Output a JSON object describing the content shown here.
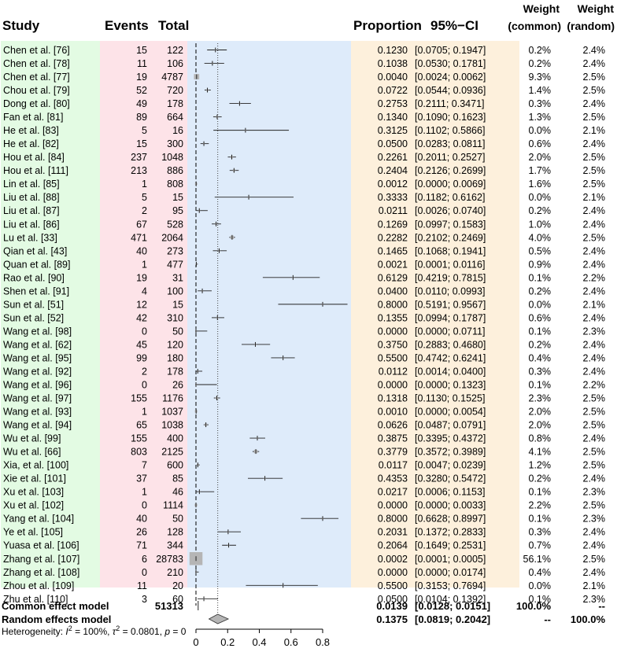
{
  "headers": {
    "study": "Study",
    "events": "Events",
    "total": "Total",
    "proportion": "Proportion",
    "ci": "95%−CI",
    "weight_common_1": "Weight",
    "weight_common_2": "(common)",
    "weight_random_1": "Weight",
    "weight_random_2": "(random)"
  },
  "colors": {
    "study_bg": "#e3fbe3",
    "counts_bg": "#fde3e8",
    "plot_bg": "#deebfa",
    "prop_bg": "#fdf0dc",
    "square": "#b5b5b5",
    "diamond": "#b5b5b5"
  },
  "chart_data": {
    "type": "forest",
    "xlim": [
      0,
      0.8
    ],
    "x_ticks": [
      0,
      0.2,
      0.4,
      0.6,
      0.8
    ],
    "x_tick_labels": [
      "0",
      "0.2",
      "0.4",
      "0.6",
      "0.8"
    ],
    "null_line": 0,
    "common_effect": 0.0139,
    "random_effect": 0.1375,
    "studies": [
      {
        "study": "Chen et al. [76]",
        "events": "15",
        "total": "122",
        "prop": 0.123,
        "lo": 0.0705,
        "hi": 0.1947,
        "prop_txt": "0.1230",
        "ci_txt": "[0.0705; 0.1947]",
        "w_common": "0.2%",
        "w_random": "2.4%",
        "w": 0.2
      },
      {
        "study": "Chen et al. [78]",
        "events": "11",
        "total": "106",
        "prop": 0.1038,
        "lo": 0.053,
        "hi": 0.1781,
        "prop_txt": "0.1038",
        "ci_txt": "[0.0530; 0.1781]",
        "w_common": "0.2%",
        "w_random": "2.4%",
        "w": 0.2
      },
      {
        "study": "Chen et al. [77]",
        "events": "19",
        "total": "4787",
        "prop": 0.004,
        "lo": 0.0024,
        "hi": 0.0062,
        "prop_txt": "0.0040",
        "ci_txt": "[0.0024; 0.0062]",
        "w_common": "9.3%",
        "w_random": "2.5%",
        "w": 9.3
      },
      {
        "study": "Chou et al. [79]",
        "events": "52",
        "total": "720",
        "prop": 0.0722,
        "lo": 0.0544,
        "hi": 0.0936,
        "prop_txt": "0.0722",
        "ci_txt": "[0.0544; 0.0936]",
        "w_common": "1.4%",
        "w_random": "2.5%",
        "w": 1.4
      },
      {
        "study": "Dong et al. [80]",
        "events": "49",
        "total": "178",
        "prop": 0.2753,
        "lo": 0.2111,
        "hi": 0.3471,
        "prop_txt": "0.2753",
        "ci_txt": "[0.2111; 0.3471]",
        "w_common": "0.3%",
        "w_random": "2.4%",
        "w": 0.3
      },
      {
        "study": "Fan et al. [81]",
        "events": "89",
        "total": "664",
        "prop": 0.134,
        "lo": 0.109,
        "hi": 0.1623,
        "prop_txt": "0.1340",
        "ci_txt": "[0.1090; 0.1623]",
        "w_common": "1.3%",
        "w_random": "2.5%",
        "w": 1.3
      },
      {
        "study": "He et al. [83]",
        "events": "5",
        "total": "16",
        "prop": 0.3125,
        "lo": 0.1102,
        "hi": 0.5866,
        "prop_txt": "0.3125",
        "ci_txt": "[0.1102; 0.5866]",
        "w_common": "0.0%",
        "w_random": "2.1%",
        "w": 0.0
      },
      {
        "study": "He et al. [82]",
        "events": "15",
        "total": "300",
        "prop": 0.05,
        "lo": 0.0283,
        "hi": 0.0811,
        "prop_txt": "0.0500",
        "ci_txt": "[0.0283; 0.0811]",
        "w_common": "0.6%",
        "w_random": "2.4%",
        "w": 0.6
      },
      {
        "study": "Hou et al. [84]",
        "events": "237",
        "total": "1048",
        "prop": 0.2261,
        "lo": 0.2011,
        "hi": 0.2527,
        "prop_txt": "0.2261",
        "ci_txt": "[0.2011; 0.2527]",
        "w_common": "2.0%",
        "w_random": "2.5%",
        "w": 2.0
      },
      {
        "study": "Hou et al. [111]",
        "events": "213",
        "total": "886",
        "prop": 0.2404,
        "lo": 0.2126,
        "hi": 0.2699,
        "prop_txt": "0.2404",
        "ci_txt": "[0.2126; 0.2699]",
        "w_common": "1.7%",
        "w_random": "2.5%",
        "w": 1.7
      },
      {
        "study": "Lin et al. [85]",
        "events": "1",
        "total": "808",
        "prop": 0.0012,
        "lo": 0.0,
        "hi": 0.0069,
        "prop_txt": "0.0012",
        "ci_txt": "[0.0000; 0.0069]",
        "w_common": "1.6%",
        "w_random": "2.5%",
        "w": 1.6
      },
      {
        "study": "Liu et al. [88]",
        "events": "5",
        "total": "15",
        "prop": 0.3333,
        "lo": 0.1182,
        "hi": 0.6162,
        "prop_txt": "0.3333",
        "ci_txt": "[0.1182; 0.6162]",
        "w_common": "0.0%",
        "w_random": "2.1%",
        "w": 0.0
      },
      {
        "study": "Liu et al. [87]",
        "events": "2",
        "total": "95",
        "prop": 0.0211,
        "lo": 0.0026,
        "hi": 0.074,
        "prop_txt": "0.0211",
        "ci_txt": "[0.0026; 0.0740]",
        "w_common": "0.2%",
        "w_random": "2.4%",
        "w": 0.2
      },
      {
        "study": "Liu et al. [86]",
        "events": "67",
        "total": "528",
        "prop": 0.1269,
        "lo": 0.0997,
        "hi": 0.1583,
        "prop_txt": "0.1269",
        "ci_txt": "[0.0997; 0.1583]",
        "w_common": "1.0%",
        "w_random": "2.4%",
        "w": 1.0
      },
      {
        "study": "Lu et al. [33]",
        "events": "471",
        "total": "2064",
        "prop": 0.2282,
        "lo": 0.2102,
        "hi": 0.2469,
        "prop_txt": "0.2282",
        "ci_txt": "[0.2102; 0.2469]",
        "w_common": "4.0%",
        "w_random": "2.5%",
        "w": 4.0
      },
      {
        "study": "Qian et al. [43]",
        "events": "40",
        "total": "273",
        "prop": 0.1465,
        "lo": 0.1068,
        "hi": 0.1941,
        "prop_txt": "0.1465",
        "ci_txt": "[0.1068; 0.1941]",
        "w_common": "0.5%",
        "w_random": "2.4%",
        "w": 0.5
      },
      {
        "study": "Quan et al. [89]",
        "events": "1",
        "total": "477",
        "prop": 0.0021,
        "lo": 0.0001,
        "hi": 0.0116,
        "prop_txt": "0.0021",
        "ci_txt": "[0.0001; 0.0116]",
        "w_common": "0.9%",
        "w_random": "2.4%",
        "w": 0.9
      },
      {
        "study": "Rao et al. [90]",
        "events": "19",
        "total": "31",
        "prop": 0.6129,
        "lo": 0.4219,
        "hi": 0.7815,
        "prop_txt": "0.6129",
        "ci_txt": "[0.4219; 0.7815]",
        "w_common": "0.1%",
        "w_random": "2.2%",
        "w": 0.1
      },
      {
        "study": "Shen et al. [91]",
        "events": "4",
        "total": "100",
        "prop": 0.04,
        "lo": 0.011,
        "hi": 0.0993,
        "prop_txt": "0.0400",
        "ci_txt": "[0.0110; 0.0993]",
        "w_common": "0.2%",
        "w_random": "2.4%",
        "w": 0.2
      },
      {
        "study": "Sun et al. [51]",
        "events": "12",
        "total": "15",
        "prop": 0.8,
        "lo": 0.5191,
        "hi": 0.9567,
        "prop_txt": "0.8000",
        "ci_txt": "[0.5191; 0.9567]",
        "w_common": "0.0%",
        "w_random": "2.1%",
        "w": 0.0
      },
      {
        "study": "Sun et al. [52]",
        "events": "42",
        "total": "310",
        "prop": 0.1355,
        "lo": 0.0994,
        "hi": 0.1787,
        "prop_txt": "0.1355",
        "ci_txt": "[0.0994; 0.1787]",
        "w_common": "0.6%",
        "w_random": "2.4%",
        "w": 0.6
      },
      {
        "study": "Wang et al. [98]",
        "events": "0",
        "total": "50",
        "prop": 0.0,
        "lo": 0.0,
        "hi": 0.0711,
        "prop_txt": "0.0000",
        "ci_txt": "[0.0000; 0.0711]",
        "w_common": "0.1%",
        "w_random": "2.3%",
        "w": 0.1
      },
      {
        "study": "Wang et al. [62]",
        "events": "45",
        "total": "120",
        "prop": 0.375,
        "lo": 0.2883,
        "hi": 0.468,
        "prop_txt": "0.3750",
        "ci_txt": "[0.2883; 0.4680]",
        "w_common": "0.2%",
        "w_random": "2.4%",
        "w": 0.2
      },
      {
        "study": "Wang et al. [95]",
        "events": "99",
        "total": "180",
        "prop": 0.55,
        "lo": 0.4742,
        "hi": 0.6241,
        "prop_txt": "0.5500",
        "ci_txt": "[0.4742; 0.6241]",
        "w_common": "0.4%",
        "w_random": "2.4%",
        "w": 0.4
      },
      {
        "study": "Wang et al. [92]",
        "events": "2",
        "total": "178",
        "prop": 0.0112,
        "lo": 0.0014,
        "hi": 0.04,
        "prop_txt": "0.0112",
        "ci_txt": "[0.0014; 0.0400]",
        "w_common": "0.3%",
        "w_random": "2.4%",
        "w": 0.3
      },
      {
        "study": "Wang et al. [96]",
        "events": "0",
        "total": "26",
        "prop": 0.0,
        "lo": 0.0,
        "hi": 0.1323,
        "prop_txt": "0.0000",
        "ci_txt": "[0.0000; 0.1323]",
        "w_common": "0.1%",
        "w_random": "2.2%",
        "w": 0.1
      },
      {
        "study": "Wang et al. [97]",
        "events": "155",
        "total": "1176",
        "prop": 0.1318,
        "lo": 0.113,
        "hi": 0.1525,
        "prop_txt": "0.1318",
        "ci_txt": "[0.1130; 0.1525]",
        "w_common": "2.3%",
        "w_random": "2.5%",
        "w": 2.3
      },
      {
        "study": "Wang et al. [93]",
        "events": "1",
        "total": "1037",
        "prop": 0.001,
        "lo": 0.0,
        "hi": 0.0054,
        "prop_txt": "0.0010",
        "ci_txt": "[0.0000; 0.0054]",
        "w_common": "2.0%",
        "w_random": "2.5%",
        "w": 2.0
      },
      {
        "study": "Wang et al. [94]",
        "events": "65",
        "total": "1038",
        "prop": 0.0626,
        "lo": 0.0487,
        "hi": 0.0791,
        "prop_txt": "0.0626",
        "ci_txt": "[0.0487; 0.0791]",
        "w_common": "2.0%",
        "w_random": "2.5%",
        "w": 2.0
      },
      {
        "study": "Wu et al. [99]",
        "events": "155",
        "total": "400",
        "prop": 0.3875,
        "lo": 0.3395,
        "hi": 0.4372,
        "prop_txt": "0.3875",
        "ci_txt": "[0.3395; 0.4372]",
        "w_common": "0.8%",
        "w_random": "2.4%",
        "w": 0.8
      },
      {
        "study": "Wu et al. [66]",
        "events": "803",
        "total": "2125",
        "prop": 0.3779,
        "lo": 0.3572,
        "hi": 0.3989,
        "prop_txt": "0.3779",
        "ci_txt": "[0.3572; 0.3989]",
        "w_common": "4.1%",
        "w_random": "2.5%",
        "w": 4.1
      },
      {
        "study": "Xia, et al. [100]",
        "events": "7",
        "total": "600",
        "prop": 0.0117,
        "lo": 0.0047,
        "hi": 0.0239,
        "prop_txt": "0.0117",
        "ci_txt": "[0.0047; 0.0239]",
        "w_common": "1.2%",
        "w_random": "2.5%",
        "w": 1.2
      },
      {
        "study": "Xie et al. [101]",
        "events": "37",
        "total": "85",
        "prop": 0.4353,
        "lo": 0.328,
        "hi": 0.5472,
        "prop_txt": "0.4353",
        "ci_txt": "[0.3280; 0.5472]",
        "w_common": "0.2%",
        "w_random": "2.4%",
        "w": 0.2
      },
      {
        "study": "Xu et al. [103]",
        "events": "1",
        "total": "46",
        "prop": 0.0217,
        "lo": 0.0006,
        "hi": 0.1153,
        "prop_txt": "0.0217",
        "ci_txt": "[0.0006; 0.1153]",
        "w_common": "0.1%",
        "w_random": "2.3%",
        "w": 0.1
      },
      {
        "study": "Xu et al. [102]",
        "events": "0",
        "total": "1114",
        "prop": 0.0,
        "lo": 0.0,
        "hi": 0.0033,
        "prop_txt": "0.0000",
        "ci_txt": "[0.0000; 0.0033]",
        "w_common": "2.2%",
        "w_random": "2.5%",
        "w": 2.2
      },
      {
        "study": "Yang et al. [104]",
        "events": "40",
        "total": "50",
        "prop": 0.8,
        "lo": 0.6628,
        "hi": 0.8997,
        "prop_txt": "0.8000",
        "ci_txt": "[0.6628; 0.8997]",
        "w_common": "0.1%",
        "w_random": "2.3%",
        "w": 0.1
      },
      {
        "study": "Ye et al. [105]",
        "events": "26",
        "total": "128",
        "prop": 0.2031,
        "lo": 0.1372,
        "hi": 0.2833,
        "prop_txt": "0.2031",
        "ci_txt": "[0.1372; 0.2833]",
        "w_common": "0.3%",
        "w_random": "2.4%",
        "w": 0.3
      },
      {
        "study": "Yuasa et al. [106]",
        "events": "71",
        "total": "344",
        "prop": 0.2064,
        "lo": 0.1649,
        "hi": 0.2531,
        "prop_txt": "0.2064",
        "ci_txt": "[0.1649; 0.2531]",
        "w_common": "0.7%",
        "w_random": "2.4%",
        "w": 0.7
      },
      {
        "study": "Zhang et al. [107]",
        "events": "6",
        "total": "28783",
        "prop": 0.0002,
        "lo": 0.0001,
        "hi": 0.0005,
        "prop_txt": "0.0002",
        "ci_txt": "[0.0001; 0.0005]",
        "w_common": "56.1%",
        "w_random": "2.5%",
        "w": 56.1
      },
      {
        "study": "Zhang et al. [108]",
        "events": "0",
        "total": "210",
        "prop": 0.0,
        "lo": 0.0,
        "hi": 0.0174,
        "prop_txt": "0.0000",
        "ci_txt": "[0.0000; 0.0174]",
        "w_common": "0.4%",
        "w_random": "2.4%",
        "w": 0.4
      },
      {
        "study": "Zhou et al. [109]",
        "events": "11",
        "total": "20",
        "prop": 0.55,
        "lo": 0.3153,
        "hi": 0.7694,
        "prop_txt": "0.5500",
        "ci_txt": "[0.3153; 0.7694]",
        "w_common": "0.0%",
        "w_random": "2.1%",
        "w": 0.0
      },
      {
        "study": "Zhu et al. [110]",
        "events": "3",
        "total": "60",
        "prop": 0.05,
        "lo": 0.0104,
        "hi": 0.1392,
        "prop_txt": "0.0500",
        "ci_txt": "[0.0104; 0.1392]",
        "w_common": "0.1%",
        "w_random": "2.3%",
        "w": 0.1
      }
    ],
    "summary": [
      {
        "label": "Common effect model",
        "total": "51313",
        "prop": 0.0139,
        "lo": 0.0128,
        "hi": 0.0151,
        "prop_txt": "0.0139",
        "ci_txt": "[0.0128; 0.0151]",
        "w_common": "100.0%",
        "w_random": "--",
        "diamond": false
      },
      {
        "label": "Random effects model",
        "total": "",
        "prop": 0.1375,
        "lo": 0.0819,
        "hi": 0.2042,
        "prop_txt": "0.1375",
        "ci_txt": "[0.0819; 0.2042]",
        "w_common": "--",
        "w_random": "100.0%",
        "diamond": true
      }
    ],
    "heterogeneity": {
      "prefix": "Heterogeneity: ",
      "i2_sym": "I",
      "i2_sup": "2",
      "i2_val": " = 100%,  ",
      "tau_sym": "τ",
      "tau_sup": "2",
      "tau_val": " = 0.0801, ",
      "p_sym": "p",
      "p_val": " = 0"
    }
  }
}
